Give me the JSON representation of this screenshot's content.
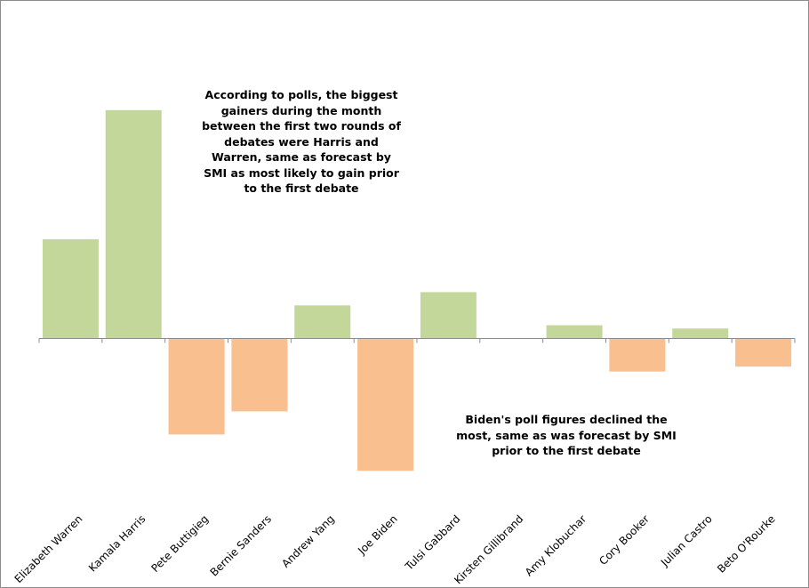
{
  "chart_data": {
    "type": "bar",
    "categories": [
      "Elizabeth Warren",
      "Kamala Harris",
      "Pete Buttigieg",
      "Bernie Sanders",
      "Andrew Yang",
      "Joe Biden",
      "Tulsi Gabbard",
      "Kirsten Gillibrand",
      "Amy Klobuchar",
      "Cory Booker",
      "Julian Castro",
      "Beto O'Rourke"
    ],
    "values": [
      3.0,
      6.9,
      -2.9,
      -2.2,
      1.0,
      -4.0,
      1.4,
      0.0,
      0.4,
      -1.0,
      0.3,
      -0.85
    ],
    "ylim": [
      -5.9,
      10.2
    ],
    "colors": {
      "gain": "#c4d79b",
      "loss": "#fabf8f",
      "axis": "#8c8c8c"
    },
    "grid": false,
    "annotations": [
      "According to polls, the biggest gainers during the month between the first two rounds of debates were Harris and Warren, same as forecast by SMI as most likely to gain prior to the first debate",
      "Biden's poll figures declined the most, same as was forecast by SMI prior to the first debate"
    ]
  }
}
